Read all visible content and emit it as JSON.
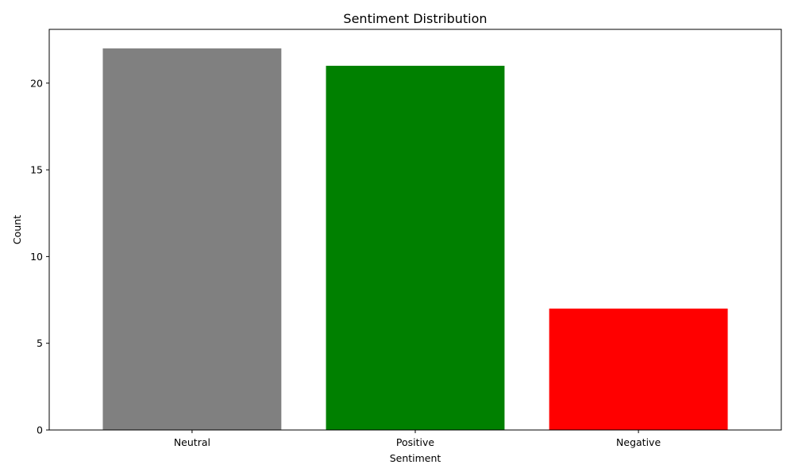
{
  "chart_data": {
    "type": "bar",
    "title": "Sentiment Distribution",
    "xlabel": "Sentiment",
    "ylabel": "Count",
    "categories": [
      "Neutral",
      "Positive",
      "Negative"
    ],
    "values": [
      22,
      21,
      7
    ],
    "colors": [
      "#808080",
      "#008000",
      "#ff0000"
    ],
    "ylim": [
      0,
      23.1
    ],
    "yticks": [
      0,
      5,
      10,
      15,
      20
    ],
    "grid": false,
    "legend": "none"
  }
}
